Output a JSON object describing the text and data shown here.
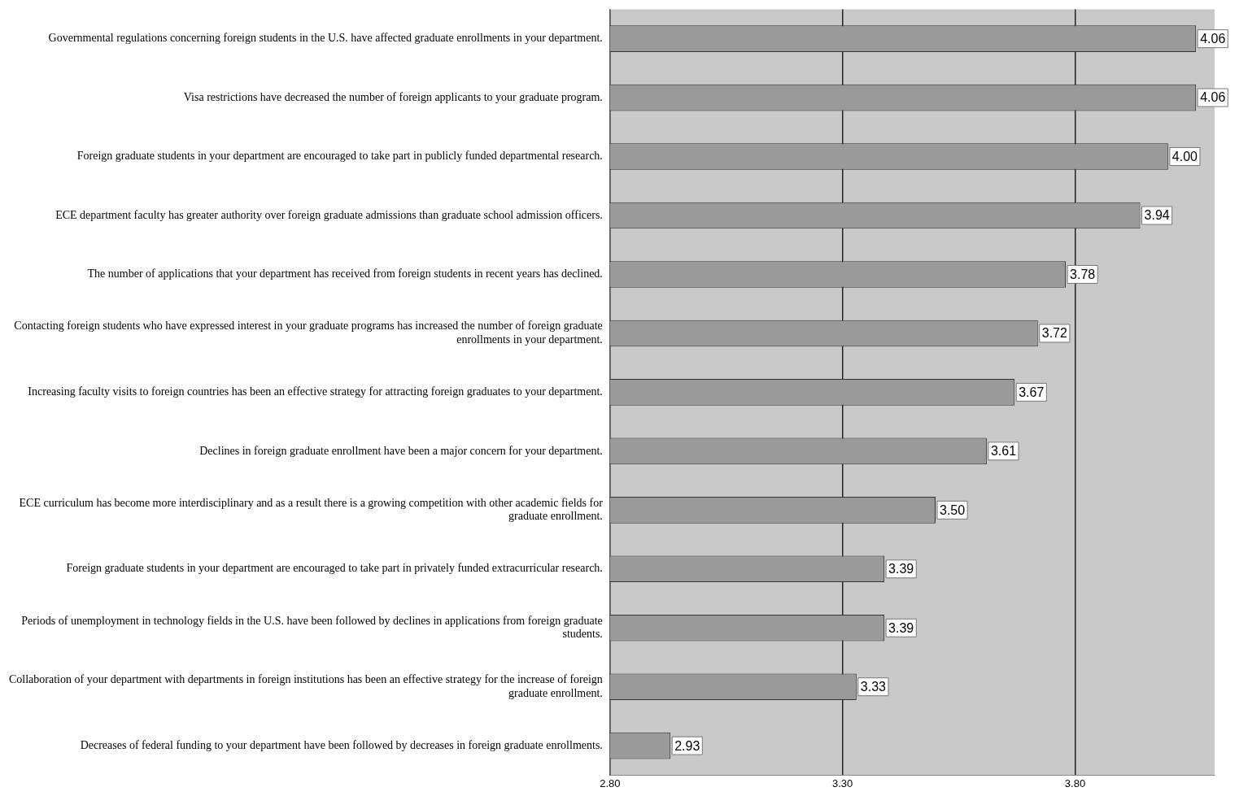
{
  "chart_data": {
    "type": "bar",
    "orientation": "horizontal",
    "categories": [
      "Governmental regulations concerning foreign students in the U.S. have affected graduate enrollments in your department.",
      "Visa restrictions have decreased the number of foreign applicants to your graduate program.",
      "Foreign graduate students in your department are encouraged to take part in publicly funded departmental research.",
      "ECE department faculty has greater authority over foreign graduate admissions than graduate school admission officers.",
      "The number of applications that your department has received from foreign students in recent years has declined.",
      "Contacting foreign students who have expressed interest in your graduate programs has increased the number of foreign graduate enrollments in your department.",
      "Increasing faculty visits to foreign countries has been an effective strategy for attracting foreign graduates to your department.",
      "Declines in foreign graduate enrollment have been a major concern for your department.",
      "ECE curriculum has become more interdisciplinary and as a result there is a growing competition with other academic fields for graduate enrollment.",
      "Foreign graduate students in your department are encouraged to take part in privately funded extracurricular research.",
      "Periods of unemployment in technology fields in the U.S. have been followed by declines in applications from foreign graduate students.",
      "Collaboration of your department with departments in foreign institutions has been an effective strategy for the increase of foreign graduate enrollment.",
      "Decreases of federal funding to your department have been followed by decreases in foreign graduate enrollments."
    ],
    "values": [
      4.06,
      4.06,
      4.0,
      3.94,
      3.78,
      3.72,
      3.67,
      3.61,
      3.5,
      3.39,
      3.39,
      3.33,
      2.93
    ],
    "value_labels": [
      "4.06",
      "4.06",
      "4.00",
      "3.94",
      "3.78",
      "3.72",
      "3.67",
      "3.61",
      "3.50",
      "3.39",
      "3.39",
      "3.33",
      "2.93"
    ],
    "color": "#9a9a9a",
    "xlim": [
      2.8,
      4.1
    ],
    "xticks": [
      {
        "value": 2.8,
        "label": "2.80"
      },
      {
        "value": 3.3,
        "label": "3.30"
      },
      {
        "value": 3.8,
        "label": "3.80"
      }
    ],
    "grid": "x",
    "legend": false
  }
}
